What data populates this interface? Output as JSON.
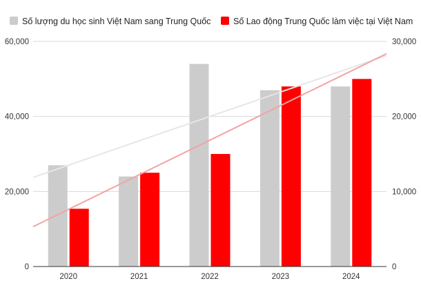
{
  "chart_data": {
    "type": "bar",
    "categories": [
      "2020",
      "2021",
      "2022",
      "2023",
      "2024"
    ],
    "series": [
      {
        "name": "Số lượng du học sinh Việt Nam sang Trung Quốc",
        "axis": "left",
        "color": "#cccccc",
        "trendline_color": "#e6e6e6",
        "values": [
          27000,
          24000,
          54000,
          47000,
          48000
        ]
      },
      {
        "name": "Số Lao động Trung Quốc làm việc tại Việt Nam",
        "axis": "right",
        "color": "#ff0000",
        "trendline_color": "#f4a3a3",
        "values": [
          7700,
          12500,
          15000,
          24000,
          25000
        ]
      }
    ],
    "y_left": {
      "min": 0,
      "max": 60000,
      "ticks": [
        "0",
        "20,000",
        "40,000",
        "60,000"
      ],
      "tick_values": [
        0,
        20000,
        40000,
        60000
      ]
    },
    "y_right": {
      "min": 0,
      "max": 30000,
      "ticks": [
        "0",
        "10,000",
        "20,000",
        "30,000"
      ],
      "tick_values": [
        0,
        10000,
        20000,
        30000
      ]
    },
    "trendlines": true,
    "grid": true,
    "legend_position": "top",
    "title": "",
    "xlabel": "",
    "ylabel": ""
  }
}
